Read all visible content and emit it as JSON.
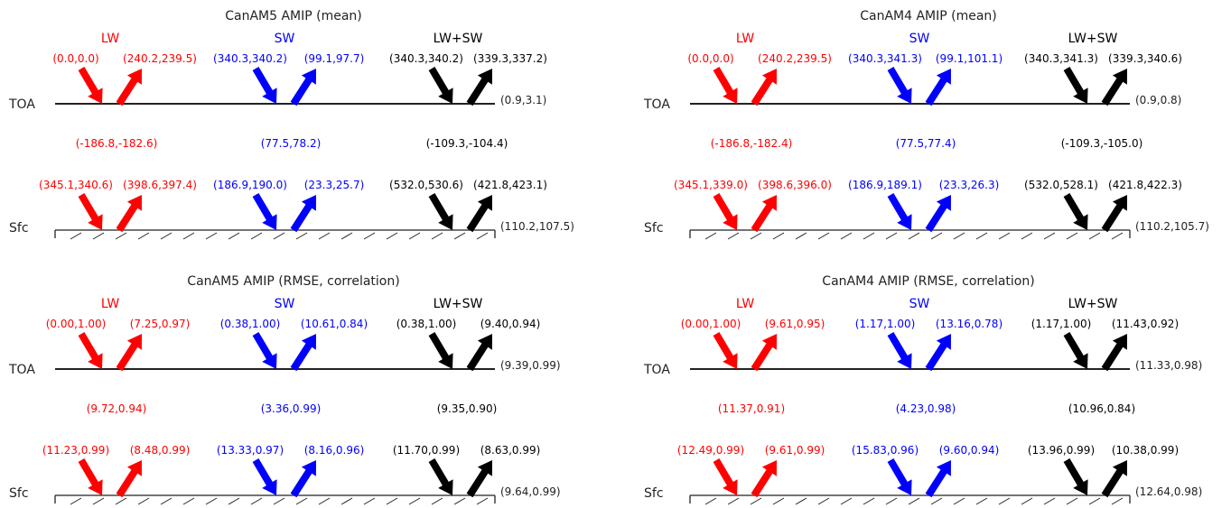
{
  "colors": {
    "lw": "#ff0000",
    "sw": "#0000ff",
    "total": "#000000"
  },
  "level_labels": {
    "toa": "TOA",
    "sfc": "Sfc"
  },
  "panels": [
    {
      "title": "CanAM5 AMIP (mean)",
      "columns": [
        {
          "label": "LW",
          "color_key": "lw",
          "toa_down": "(0.0,0.0)",
          "toa_up": "(240.2,239.5)",
          "atm": "(-186.8,-182.6)",
          "sfc_down": "(345.1,340.6)",
          "sfc_up": "(398.6,397.4)"
        },
        {
          "label": "SW",
          "color_key": "sw",
          "toa_down": "(340.3,340.2)",
          "toa_up": "(99.1,97.7)",
          "atm": "(77.5,78.2)",
          "sfc_down": "(186.9,190.0)",
          "sfc_up": "(23.3,25.7)"
        },
        {
          "label": "LW+SW",
          "color_key": "total",
          "toa_down": "(340.3,340.2)",
          "toa_up": "(339.3,337.2)",
          "atm": "(-109.3,-104.4)",
          "sfc_down": "(532.0,530.6)",
          "sfc_up": "(421.8,423.1)"
        }
      ],
      "toa_net": "(0.9,3.1)",
      "sfc_net": "(110.2,107.5)"
    },
    {
      "title": "CanAM4 AMIP (mean)",
      "columns": [
        {
          "label": "LW",
          "color_key": "lw",
          "toa_down": "(0.0,0.0)",
          "toa_up": "(240.2,239.5)",
          "atm": "(-186.8,-182.4)",
          "sfc_down": "(345.1,339.0)",
          "sfc_up": "(398.6,396.0)"
        },
        {
          "label": "SW",
          "color_key": "sw",
          "toa_down": "(340.3,341.3)",
          "toa_up": "(99.1,101.1)",
          "atm": "(77.5,77.4)",
          "sfc_down": "(186.9,189.1)",
          "sfc_up": "(23.3,26.3)"
        },
        {
          "label": "LW+SW",
          "color_key": "total",
          "toa_down": "(340.3,341.3)",
          "toa_up": "(339.3,340.6)",
          "atm": "(-109.3,-105.0)",
          "sfc_down": "(532.0,528.1)",
          "sfc_up": "(421.8,422.3)"
        }
      ],
      "toa_net": "(0.9,0.8)",
      "sfc_net": "(110.2,105.7)"
    },
    {
      "title": "CanAM5 AMIP (RMSE, correlation)",
      "columns": [
        {
          "label": "LW",
          "color_key": "lw",
          "toa_down": "(0.00,1.00)",
          "toa_up": "(7.25,0.97)",
          "atm": "(9.72,0.94)",
          "sfc_down": "(11.23,0.99)",
          "sfc_up": "(8.48,0.99)"
        },
        {
          "label": "SW",
          "color_key": "sw",
          "toa_down": "(0.38,1.00)",
          "toa_up": "(10.61,0.84)",
          "atm": "(3.36,0.99)",
          "sfc_down": "(13.33,0.97)",
          "sfc_up": "(8.16,0.96)"
        },
        {
          "label": "LW+SW",
          "color_key": "total",
          "toa_down": "(0.38,1.00)",
          "toa_up": "(9.40,0.94)",
          "atm": "(9.35,0.90)",
          "sfc_down": "(11.70,0.99)",
          "sfc_up": "(8.63,0.99)"
        }
      ],
      "toa_net": "(9.39,0.99)",
      "sfc_net": "(9.64,0.99)"
    },
    {
      "title": "CanAM4 AMIP (RMSE, correlation)",
      "columns": [
        {
          "label": "LW",
          "color_key": "lw",
          "toa_down": "(0.00,1.00)",
          "toa_up": "(9.61,0.95)",
          "atm": "(11.37,0.91)",
          "sfc_down": "(12.49,0.99)",
          "sfc_up": "(9.61,0.99)"
        },
        {
          "label": "SW",
          "color_key": "sw",
          "toa_down": "(1.17,1.00)",
          "toa_up": "(13.16,0.78)",
          "atm": "(4.23,0.98)",
          "sfc_down": "(15.83,0.96)",
          "sfc_up": "(9.60,0.94)"
        },
        {
          "label": "LW+SW",
          "color_key": "total",
          "toa_down": "(1.17,1.00)",
          "toa_up": "(11.43,0.92)",
          "atm": "(10.96,0.84)",
          "sfc_down": "(13.96,0.99)",
          "sfc_up": "(10.38,0.99)"
        }
      ],
      "toa_net": "(11.33,0.98)",
      "sfc_net": "(12.64,0.98)"
    }
  ]
}
